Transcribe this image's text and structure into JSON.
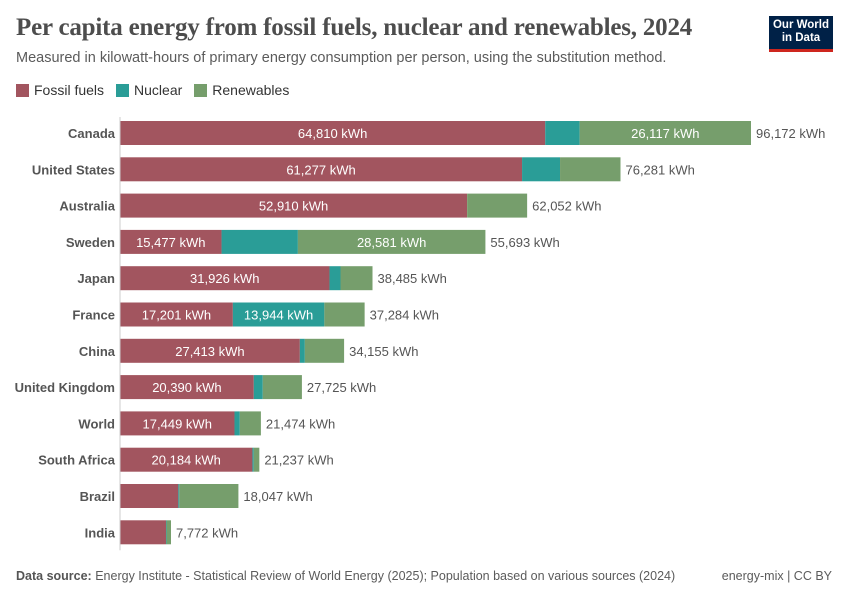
{
  "title": "Per capita energy from fossil fuels, nuclear and renewables, 2024",
  "subtitle": "Measured in kilowatt-hours of primary energy consumption per person, using the substitution method.",
  "logo": "Our World in Data",
  "footer": {
    "source_label": "Data source:",
    "source_text": "Energy Institute - Statistical Review of World Energy (2025); Population based on various sources (2024)",
    "right": "energy-mix | CC BY"
  },
  "chart_data": {
    "type": "bar",
    "orientation": "horizontal",
    "stacked": true,
    "unit": "kWh",
    "legend_position": "top-left",
    "grid": false,
    "categories": [
      "Canada",
      "United States",
      "Australia",
      "Sweden",
      "Japan",
      "France",
      "China",
      "United Kingdom",
      "World",
      "South Africa",
      "Brazil",
      "India"
    ],
    "series": [
      {
        "name": "Fossil fuels",
        "color": "#a2555f",
        "values": [
          64810,
          61277,
          52910,
          15477,
          31926,
          17201,
          27413,
          20390,
          17449,
          20184,
          8890,
          7010
        ],
        "labels": [
          "64,810 kWh",
          "61,277 kWh",
          "52,910 kWh",
          "15,477 kWh",
          "31,926 kWh",
          "17,201 kWh",
          "27,413 kWh",
          "20,390 kWh",
          "17,449 kWh",
          "20,184 kWh",
          "",
          ""
        ]
      },
      {
        "name": "Nuclear",
        "color": "#2a9d97",
        "values": [
          5245,
          5790,
          0,
          11635,
          1680,
          13944,
          760,
          1370,
          810,
          200,
          150,
          90
        ],
        "labels": [
          "",
          "",
          "",
          "",
          "",
          "13,944 kWh",
          "",
          "",
          "",
          "",
          "",
          ""
        ]
      },
      {
        "name": "Renewables",
        "color": "#769e6c",
        "values": [
          26117,
          9214,
          9142,
          28581,
          4879,
          6139,
          5982,
          5965,
          3215,
          853,
          9007,
          672
        ],
        "labels": [
          "26,117 kWh",
          "",
          "",
          "28,581 kWh",
          "",
          "",
          "",
          "",
          "",
          "",
          "",
          ""
        ]
      }
    ],
    "totals": [
      "96,172 kWh",
      "76,281 kWh",
      "62,052 kWh",
      "55,693 kWh",
      "38,485 kWh",
      "37,284 kWh",
      "34,155 kWh",
      "27,725 kWh",
      "21,474 kWh",
      "21,237 kWh",
      "18,047 kWh",
      "7,772 kWh"
    ],
    "xlim": [
      0,
      96172
    ]
  }
}
